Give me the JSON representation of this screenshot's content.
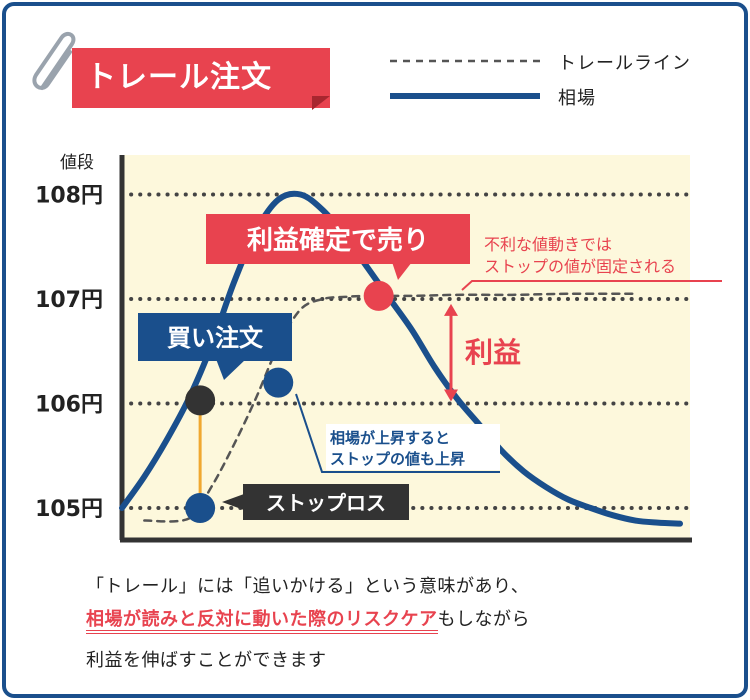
{
  "title": "トレール注文",
  "colors": {
    "frame": "#1a4f8c",
    "title_bg": "#e8434f",
    "market_line": "#1a4f8c",
    "trail_line": "#555555",
    "plot_bg": "#fdf8dc",
    "accent_red": "#e8434f",
    "buy_box": "#1a4f8c",
    "stoploss_box": "#333333",
    "connector": "#f0a830"
  },
  "chart_data": {
    "type": "line",
    "title": "",
    "ylabel": "値段",
    "xlabel": "",
    "yticks": [
      105,
      106,
      107,
      108
    ],
    "ytick_labels": [
      "105円",
      "106円",
      "107円",
      "108円"
    ],
    "ylim": [
      104.7,
      108.4
    ],
    "xlim": [
      0,
      100
    ],
    "grid": true,
    "legend": "top-right",
    "series": [
      {
        "name": "相場",
        "style": "solid",
        "x": [
          0,
          4,
          8,
          12,
          16,
          20,
          24,
          28,
          32,
          36,
          40,
          44,
          48,
          52,
          56,
          60,
          64,
          68,
          72,
          76,
          80,
          84,
          88,
          92,
          96,
          100
        ],
        "y": [
          105.0,
          105.3,
          105.65,
          106.05,
          106.55,
          107.15,
          107.65,
          107.95,
          108.0,
          107.85,
          107.6,
          107.3,
          107.0,
          106.7,
          106.35,
          106.05,
          105.8,
          105.55,
          105.35,
          105.2,
          105.08,
          105.0,
          104.93,
          104.88,
          104.86,
          104.85
        ]
      },
      {
        "name": "トレールライン",
        "style": "dashed",
        "x": [
          4,
          12,
          16,
          20,
          24,
          28,
          32,
          36,
          40,
          44,
          52,
          60,
          70,
          80,
          92
        ],
        "y": [
          104.88,
          104.9,
          105.2,
          105.6,
          106.05,
          106.55,
          106.9,
          107.0,
          107.02,
          107.03,
          107.03,
          107.04,
          107.04,
          107.05,
          107.05
        ]
      }
    ],
    "points": [
      {
        "name": "buy-point",
        "x": 14,
        "y": 106.03,
        "color": "#333333"
      },
      {
        "name": "stoploss-point",
        "x": 14,
        "y": 105.0,
        "color": "#1a4f8c"
      },
      {
        "name": "trail-up-point",
        "x": 28,
        "y": 106.2,
        "color": "#1a4f8c"
      },
      {
        "name": "sell-point",
        "x": 46,
        "y": 107.03,
        "color": "#e8434f"
      }
    ],
    "annotations": {
      "sell_label": "利益確定で売り",
      "buy_label": "買い注文",
      "stoploss_label": "ストップロス",
      "profit_label": "利益",
      "note_red": [
        "不利な値動きでは",
        "ストップの値が固定される"
      ],
      "note_blue": [
        "相場が上昇すると",
        "ストップの値も上昇"
      ]
    }
  },
  "caption": {
    "line1": "「トレール」には「追いかける」という意味があり、",
    "line2_highlight": "相場が読みと反対に動いた際のリスクケア",
    "line2_rest": "もしながら",
    "line3": "利益を伸ばすことができます"
  }
}
